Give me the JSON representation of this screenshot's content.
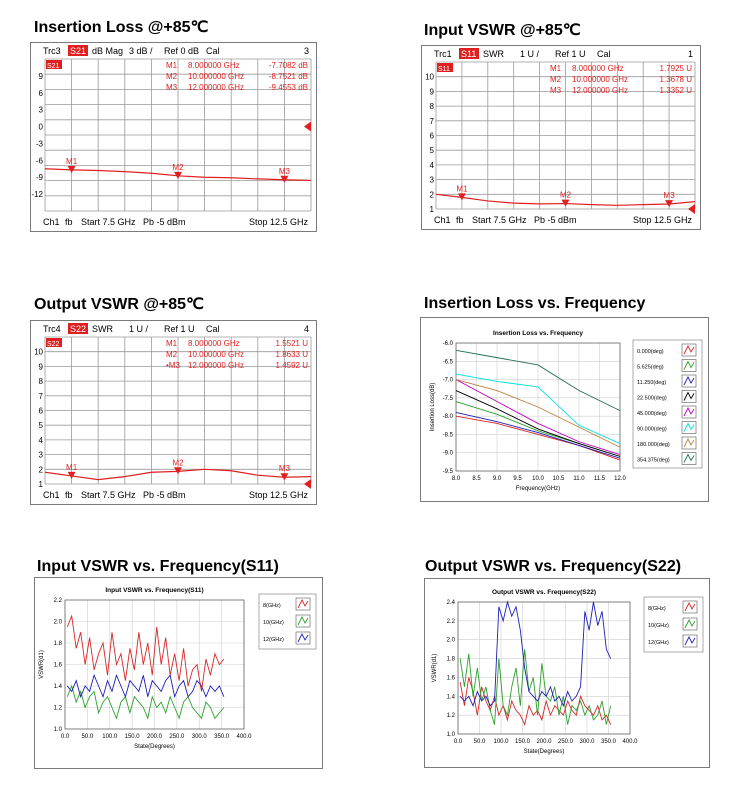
{
  "sections": [
    {
      "title": "Insertion Loss @+85℃"
    },
    {
      "title": "Input VSWR @+85℃"
    },
    {
      "title": "Output VSWR @+85℃"
    },
    {
      "title": "Insertion Loss vs. Frequency"
    },
    {
      "title": "Input VSWR vs. Frequency(S11)"
    },
    {
      "title": "Output VSWR vs. Frequency(S22)"
    }
  ],
  "chart_data": [
    {
      "type": "line",
      "title": "Insertion Loss @+85℃",
      "header": {
        "trace": "Trc3",
        "param": "S21",
        "format": "dB Mag",
        "scale": "3 dB /",
        "ref": "Ref 0 dB",
        "cal": "Cal",
        "num": "3"
      },
      "footer": {
        "ch": "Ch1",
        "fb": "fb",
        "start": "Start  7.5 GHz",
        "pb": "Pb  -5 dBm",
        "stop": "Stop  12.5 GHz"
      },
      "param_tag": "S21",
      "yticks": [
        "9",
        "6",
        "3",
        "0",
        "-3",
        "-6",
        "-9",
        "-12"
      ],
      "ylim": [
        -15,
        12
      ],
      "xlim": [
        7.5,
        12.5
      ],
      "ref_value": 0,
      "markers": [
        {
          "label": "M1",
          "name": "M1",
          "freq": "8.000000 GHz",
          "value": "-7.7082 dB",
          "x": 8.0,
          "y": -7.7082
        },
        {
          "label": "M2",
          "name": "M2",
          "freq": "10.000000 GHz",
          "value": "-8.7521 dB",
          "x": 10.0,
          "y": -8.7521
        },
        {
          "label": "M3",
          "name": "M3",
          "freq": "12.000000 GHz",
          "value": "-9.4553 dB",
          "x": 12.0,
          "y": -9.4553
        }
      ],
      "x": [
        7.5,
        8.0,
        8.5,
        9.0,
        9.5,
        10.0,
        10.5,
        11.0,
        11.5,
        12.0,
        12.5
      ],
      "y": [
        -7.5,
        -7.7,
        -7.8,
        -8.0,
        -8.3,
        -8.75,
        -9.0,
        -9.1,
        -9.3,
        -9.45,
        -9.55
      ]
    },
    {
      "type": "line",
      "title": "Input VSWR @+85℃",
      "header": {
        "trace": "Trc1",
        "param": "S11",
        "format": "SWR",
        "scale": "1 U /",
        "ref": "Ref 1 U",
        "cal": "Cal",
        "num": "1"
      },
      "footer": {
        "ch": "Ch1",
        "fb": "fb",
        "start": "Start  7.5 GHz",
        "pb": "Pb  -5 dBm",
        "stop": "Stop  12.5 GHz"
      },
      "param_tag": "S11",
      "yticks": [
        "10",
        "9",
        "8",
        "7",
        "6",
        "5",
        "4",
        "3",
        "2",
        "1"
      ],
      "ylim": [
        1,
        11
      ],
      "xlim": [
        7.5,
        12.5
      ],
      "ref_value": 1,
      "markers": [
        {
          "label": "M1",
          "name": "M1",
          "freq": "8.000000 GHz",
          "value": "1.7925 U",
          "x": 8.0,
          "y": 1.7925
        },
        {
          "label": "M2",
          "name": "M2",
          "freq": "10.000000 GHz",
          "value": "1.3678 U",
          "x": 10.0,
          "y": 1.3678
        },
        {
          "label": "M3",
          "name": "M3",
          "freq": "12.000000 GHz",
          "value": "1.3352 U",
          "x": 12.0,
          "y": 1.3352
        }
      ],
      "x": [
        7.5,
        8.0,
        8.5,
        9.0,
        9.5,
        10.0,
        10.5,
        11.0,
        11.5,
        12.0,
        12.5
      ],
      "y": [
        2.0,
        1.79,
        1.55,
        1.4,
        1.35,
        1.37,
        1.3,
        1.25,
        1.3,
        1.34,
        1.5
      ]
    },
    {
      "type": "line",
      "title": "Output VSWR @+85℃",
      "header": {
        "trace": "Trc4",
        "param": "S22",
        "format": "SWR",
        "scale": "1 U /",
        "ref": "Ref 1 U",
        "cal": "Cal",
        "num": "4"
      },
      "footer": {
        "ch": "Ch1",
        "fb": "fb",
        "start": "Start  7.5 GHz",
        "pb": "Pb  -5 dBm",
        "stop": "Stop  12.5 GHz"
      },
      "param_tag": "S22",
      "yticks": [
        "10",
        "9",
        "8",
        "7",
        "6",
        "5",
        "4",
        "3",
        "2",
        "1"
      ],
      "ylim": [
        1,
        11
      ],
      "xlim": [
        7.5,
        12.5
      ],
      "ref_value": 1,
      "markers": [
        {
          "label": "M1",
          "name": "M1",
          "freq": "8.000000 GHz",
          "value": "1.5521 U",
          "x": 8.0,
          "y": 1.5521
        },
        {
          "label": "M2",
          "name": "M2",
          "freq": "10.000000 GHz",
          "value": "1.8633 U",
          "x": 10.0,
          "y": 1.8633
        },
        {
          "label": "M3",
          "name": "•M3",
          "freq": "12.000000 GHz",
          "value": "1.4592 U",
          "x": 12.0,
          "y": 1.4592
        }
      ],
      "x": [
        7.5,
        8.0,
        8.5,
        9.0,
        9.5,
        10.0,
        10.5,
        11.0,
        11.5,
        12.0,
        12.5
      ],
      "y": [
        1.8,
        1.55,
        1.3,
        1.5,
        1.8,
        1.86,
        2.0,
        1.9,
        1.6,
        1.46,
        1.5
      ]
    },
    {
      "type": "line",
      "title": "Insertion Loss vs. Frequency",
      "xlabel": "Frequency(GHz)",
      "ylabel": "Insertion Loss(dB)",
      "xlim": [
        8.0,
        12.0
      ],
      "ylim": [
        -9.5,
        -6.0
      ],
      "xticks": [
        "8.0",
        "8.5",
        "9.0",
        "9.5",
        "10.0",
        "10.5",
        "11.0",
        "11.5",
        "12.0"
      ],
      "xtick_values": [
        8.0,
        8.5,
        9.0,
        9.5,
        10.0,
        10.5,
        11.0,
        11.5,
        12.0
      ],
      "yticks": [
        "-6.0",
        "-6.5",
        "-7.0",
        "-7.5",
        "-8.0",
        "-8.5",
        "-9.0",
        "-9.5"
      ],
      "ytick_values": [
        -6.0,
        -6.5,
        -7.0,
        -7.5,
        -8.0,
        -8.5,
        -9.0,
        -9.5
      ],
      "x": [
        8.0,
        9.0,
        10.0,
        11.0,
        12.0
      ],
      "series": [
        {
          "name": "0.000(deg)",
          "color": "#d62728",
          "values": [
            -8.0,
            -8.2,
            -8.5,
            -8.8,
            -9.2
          ]
        },
        {
          "name": "5.625(deg)",
          "color": "#2ca02c",
          "values": [
            -7.6,
            -7.95,
            -8.4,
            -8.75,
            -9.1
          ]
        },
        {
          "name": "11.250(deg)",
          "color": "#1f1fb4",
          "values": [
            -7.9,
            -8.15,
            -8.45,
            -8.8,
            -9.15
          ]
        },
        {
          "name": "22.500(deg)",
          "color": "#000000",
          "values": [
            -7.3,
            -7.8,
            -8.35,
            -8.75,
            -9.1
          ]
        },
        {
          "name": "45.000(deg)",
          "color": "#c000c0",
          "values": [
            -7.0,
            -7.6,
            -8.2,
            -8.7,
            -9.05
          ]
        },
        {
          "name": "90.000(deg)",
          "color": "#00e0e0",
          "values": [
            -6.85,
            -7.05,
            -7.2,
            -8.25,
            -8.75
          ]
        },
        {
          "name": "180.000(deg)",
          "color": "#c08040",
          "values": [
            -7.0,
            -7.3,
            -7.75,
            -8.3,
            -8.85
          ]
        },
        {
          "name": "354.375(deg)",
          "color": "#207050",
          "values": [
            -6.2,
            -6.4,
            -6.6,
            -7.3,
            -7.85
          ]
        }
      ]
    },
    {
      "type": "line",
      "title": "Input VSWR vs. Frequency(S11)",
      "xlabel": "State(Degrees)",
      "ylabel": "VSWR(d1)",
      "xlim": [
        0,
        400
      ],
      "ylim": [
        1.0,
        2.2
      ],
      "xticks": [
        "0.0",
        "50.0",
        "100.0",
        "150.0",
        "200.0",
        "250.0",
        "300.0",
        "350.0",
        "400.0"
      ],
      "xtick_values": [
        0,
        50,
        100,
        150,
        200,
        250,
        300,
        350,
        400
      ],
      "yticks": [
        "1.0",
        "1.2",
        "1.4",
        "1.6",
        "1.8",
        "2.0",
        "2.2"
      ],
      "ytick_values": [
        1.0,
        1.2,
        1.4,
        1.6,
        1.8,
        2.0,
        2.2
      ],
      "x": [
        5,
        15,
        25,
        35,
        45,
        55,
        65,
        75,
        85,
        95,
        105,
        115,
        125,
        135,
        145,
        155,
        165,
        175,
        185,
        195,
        205,
        215,
        225,
        235,
        245,
        255,
        265,
        275,
        285,
        295,
        305,
        315,
        325,
        335,
        345,
        355
      ],
      "series": [
        {
          "name": "8(GHz)",
          "color": "#d62728",
          "values": [
            1.95,
            2.05,
            1.75,
            1.9,
            1.6,
            1.85,
            1.55,
            1.7,
            1.8,
            1.5,
            1.9,
            1.6,
            1.7,
            1.45,
            1.75,
            1.55,
            1.9,
            1.6,
            1.8,
            1.5,
            1.95,
            1.6,
            1.85,
            1.5,
            1.7,
            1.45,
            1.75,
            1.4,
            1.55,
            1.6,
            1.35,
            1.65,
            1.5,
            1.7,
            1.6,
            1.65
          ]
        },
        {
          "name": "10(GHz)",
          "color": "#2ca02c",
          "values": [
            1.3,
            1.4,
            1.25,
            1.35,
            1.2,
            1.3,
            1.35,
            1.15,
            1.25,
            1.3,
            1.2,
            1.1,
            1.25,
            1.3,
            1.15,
            1.3,
            1.25,
            1.2,
            1.1,
            1.3,
            1.2,
            1.25,
            1.15,
            1.3,
            1.2,
            1.1,
            1.25,
            1.3,
            1.2,
            1.15,
            1.1,
            1.25,
            1.2,
            1.1,
            1.15,
            1.2
          ]
        },
        {
          "name": "12(GHz)",
          "color": "#1f1fb4",
          "values": [
            1.4,
            1.35,
            1.45,
            1.3,
            1.4,
            1.35,
            1.5,
            1.4,
            1.3,
            1.45,
            1.35,
            1.5,
            1.4,
            1.3,
            1.45,
            1.4,
            1.35,
            1.5,
            1.3,
            1.45,
            1.4,
            1.35,
            1.45,
            1.5,
            1.3,
            1.4,
            1.45,
            1.3,
            1.35,
            1.45,
            1.4,
            1.3,
            1.4,
            1.35,
            1.4,
            1.3
          ]
        }
      ]
    },
    {
      "type": "line",
      "title": "Output VSWR vs. Frequency(S22)",
      "xlabel": "State(Degrees)",
      "ylabel": "VSWR(d1)",
      "xlim": [
        0,
        400
      ],
      "ylim": [
        1.0,
        2.4
      ],
      "xticks": [
        "0.0",
        "50.0",
        "100.0",
        "150.0",
        "200.0",
        "250.0",
        "300.0",
        "350.0",
        "400.0"
      ],
      "xtick_values": [
        0,
        50,
        100,
        150,
        200,
        250,
        300,
        350,
        400
      ],
      "yticks": [
        "1.0",
        "1.2",
        "1.4",
        "1.6",
        "1.8",
        "2.0",
        "2.2",
        "2.4"
      ],
      "ytick_values": [
        1.0,
        1.2,
        1.4,
        1.6,
        1.8,
        2.0,
        2.2,
        2.4
      ],
      "x": [
        5,
        15,
        25,
        35,
        45,
        55,
        65,
        75,
        85,
        95,
        105,
        115,
        125,
        135,
        145,
        155,
        165,
        175,
        185,
        195,
        205,
        215,
        225,
        235,
        245,
        255,
        265,
        275,
        285,
        295,
        305,
        315,
        325,
        335,
        345,
        355
      ],
      "series": [
        {
          "name": "8(GHz)",
          "color": "#d62728",
          "values": [
            1.55,
            1.3,
            1.6,
            1.45,
            1.2,
            1.5,
            1.35,
            1.25,
            1.4,
            1.2,
            1.3,
            1.15,
            1.35,
            1.25,
            1.2,
            1.1,
            1.3,
            1.2,
            1.25,
            1.15,
            1.35,
            1.2,
            1.3,
            1.25,
            1.2,
            1.35,
            1.25,
            1.2,
            1.4,
            1.3,
            1.25,
            1.2,
            1.3,
            1.15,
            1.2,
            1.1
          ]
        },
        {
          "name": "10(GHz)",
          "color": "#2ca02c",
          "values": [
            1.8,
            1.5,
            1.85,
            1.4,
            1.7,
            1.35,
            1.5,
            1.25,
            1.1,
            1.8,
            1.3,
            1.2,
            1.5,
            1.7,
            1.3,
            1.9,
            1.45,
            1.6,
            1.2,
            1.75,
            1.4,
            1.35,
            1.5,
            1.2,
            1.4,
            1.1,
            1.3,
            1.25,
            1.35,
            1.2,
            1.3,
            1.15,
            1.2,
            1.35,
            1.1,
            1.3
          ]
        },
        {
          "name": "12(GHz)",
          "color": "#1f1fb4",
          "values": [
            1.4,
            1.35,
            1.4,
            1.3,
            1.45,
            1.35,
            1.4,
            1.3,
            1.35,
            2.35,
            2.2,
            2.4,
            2.25,
            2.35,
            2.1,
            1.7,
            1.45,
            1.4,
            1.35,
            1.45,
            1.4,
            1.5,
            1.35,
            1.4,
            1.3,
            1.45,
            1.35,
            1.4,
            1.5,
            2.3,
            2.1,
            2.4,
            2.15,
            2.3,
            1.9,
            1.8
          ]
        }
      ]
    }
  ]
}
